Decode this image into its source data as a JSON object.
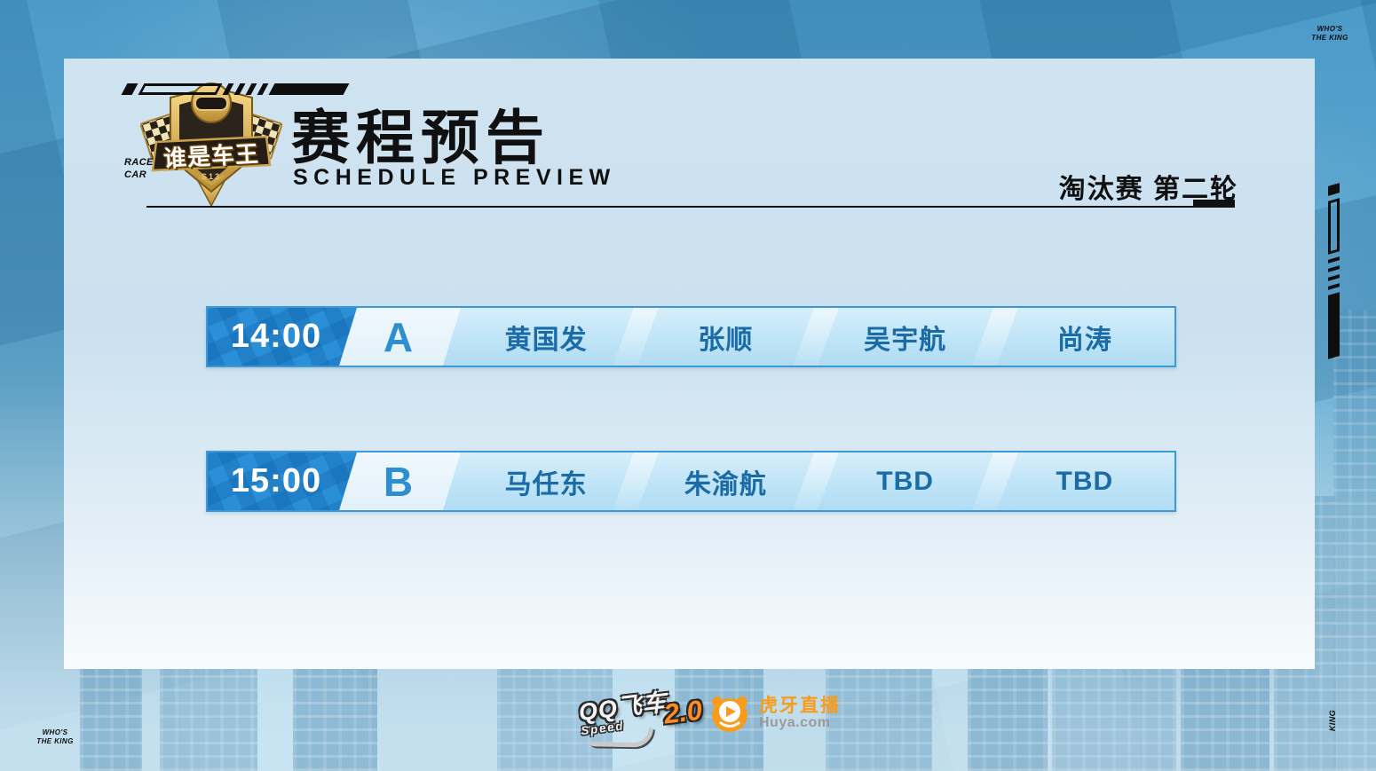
{
  "decor": {
    "top_left_tag_line1": "RACE",
    "top_left_tag_line2": "CAR",
    "top_right_tag_line1": "WHO'S",
    "top_right_tag_line2": "THE KING",
    "bottom_left_tag_line1": "WHO'S",
    "bottom_left_tag_line2": "THE KING",
    "bottom_right_tag": "KING"
  },
  "header": {
    "badge_title": "谁是车王",
    "badge_series": "S13",
    "title_cn": "赛程预告",
    "title_en": "SCHEDULE PREVIEW",
    "round_label": "淘汰赛 第二轮"
  },
  "schedule": {
    "rows": [
      {
        "time": "14:00",
        "group": "A",
        "players": [
          "黄国发",
          "张顺",
          "吴宇航",
          "尚涛"
        ]
      },
      {
        "time": "15:00",
        "group": "B",
        "players": [
          "马任东",
          "朱渝航",
          "TBD",
          "TBD"
        ]
      }
    ]
  },
  "footer": {
    "game_logo_cn": "QQ飞车",
    "game_logo_en": "Speed",
    "game_logo_version": "2.0",
    "huya_logo_cn": "虎牙直播",
    "huya_logo_en": "Huya.com"
  },
  "colors": {
    "accent_blue": "#2b8fd7",
    "row_border": "#3f98d6",
    "player_text": "#1a6ba6",
    "huya_orange": "#f79c1d",
    "title_black": "#101010",
    "badge_gold": "#d8ab45"
  }
}
